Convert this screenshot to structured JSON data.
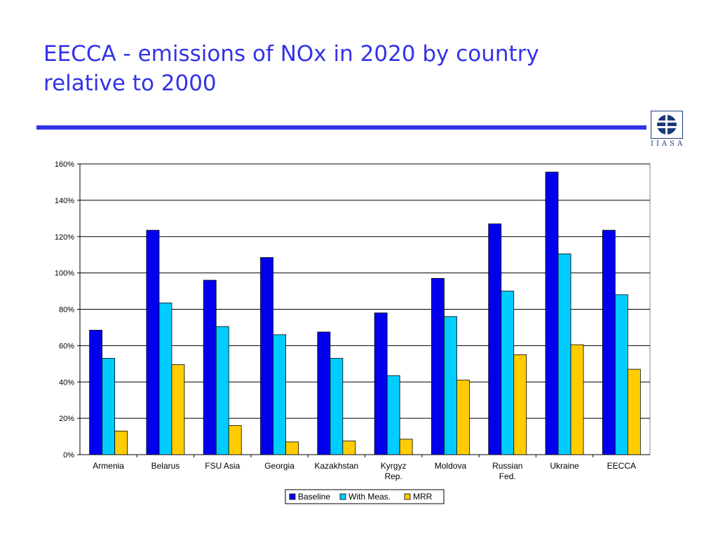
{
  "slide": {
    "title_lines": [
      "EECCA - emissions of NOx in 2020 by country",
      "relative to 2000"
    ],
    "logo_text": "IIASA"
  },
  "colors": {
    "title": "#3333e6",
    "rule": "#3333e6",
    "logo": "#1a3a7a"
  },
  "chart_data": {
    "type": "bar",
    "categories": [
      [
        "Armenia"
      ],
      [
        "Belarus"
      ],
      [
        "FSU Asia"
      ],
      [
        "Georgia"
      ],
      [
        "Kazakhstan"
      ],
      [
        "Kyrgyz",
        "Rep."
      ],
      [
        "Moldova"
      ],
      [
        "Russian",
        "Fed."
      ],
      [
        "Ukraine"
      ],
      [
        "EECCA"
      ]
    ],
    "series": [
      {
        "name": "Baseline",
        "color": "#0000ee",
        "values": [
          68.5,
          123.5,
          96,
          108.5,
          67.5,
          78,
          97,
          127,
          155.5,
          123.5
        ]
      },
      {
        "name": "With Meas.",
        "color": "#00ccff",
        "values": [
          53,
          83.5,
          70.5,
          66,
          53,
          43.5,
          76,
          90,
          110.5,
          88
        ]
      },
      {
        "name": "MRR",
        "color": "#ffcc00",
        "values": [
          13,
          49.5,
          16,
          7,
          7.5,
          8.5,
          41,
          55,
          60.5,
          47
        ]
      }
    ],
    "ylim": [
      0,
      160
    ],
    "yticks": [
      0,
      20,
      40,
      60,
      80,
      100,
      120,
      140,
      160
    ],
    "ytick_suffix": "%",
    "grid": true,
    "legend_position": "bottom-center"
  }
}
